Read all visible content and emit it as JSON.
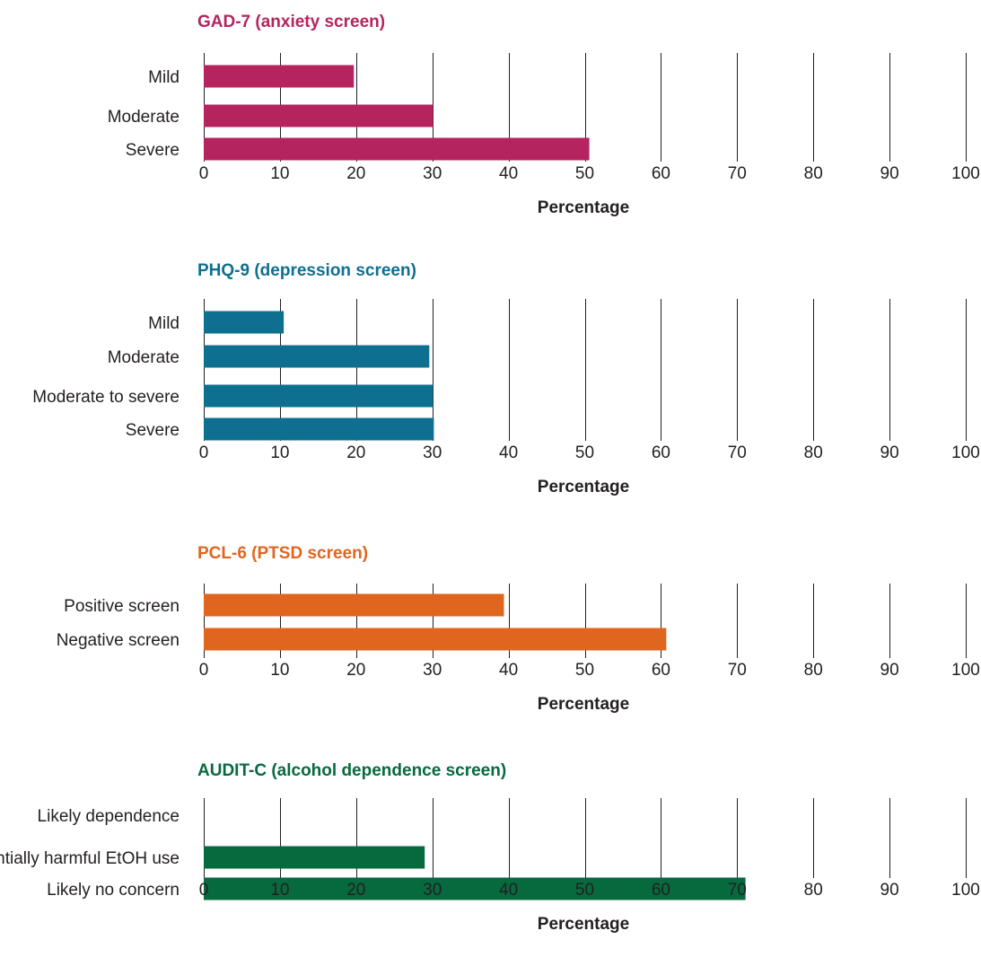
{
  "chart_data": [
    {
      "type": "bar",
      "orientation": "horizontal",
      "title": "GAD-7 (anxiety screen)",
      "color": "#b5245f",
      "categories": [
        "Mild",
        "Moderate",
        "Severe"
      ],
      "values": [
        19.7,
        30.1,
        50.6
      ],
      "xlabel": "Percentage",
      "xlim": [
        0,
        100
      ],
      "xticks": [
        "0",
        "10",
        "20",
        "30",
        "40",
        "50",
        "60",
        "70",
        "80",
        "90",
        "100"
      ],
      "grid": true
    },
    {
      "type": "bar",
      "orientation": "horizontal",
      "title": "PHQ-9 (depression screen)",
      "color": "#0f6f91",
      "categories": [
        "Mild",
        "Moderate",
        "Moderate to severe",
        "Severe"
      ],
      "values": [
        10.5,
        29.6,
        30.1,
        30.2
      ],
      "xlabel": "Percentage",
      "xlim": [
        0,
        100
      ],
      "xticks": [
        "0",
        "10",
        "20",
        "30",
        "40",
        "50",
        "60",
        "70",
        "80",
        "90",
        "100"
      ],
      "grid": true
    },
    {
      "type": "bar",
      "orientation": "horizontal",
      "title": "PCL-6 (PTSD screen)",
      "color": "#e0661f",
      "categories": [
        "Positive screen",
        "Negative screen"
      ],
      "values": [
        39.4,
        60.7
      ],
      "xlabel": "Percentage",
      "xlim": [
        0,
        100
      ],
      "xticks": [
        "0",
        "10",
        "20",
        "30",
        "40",
        "50",
        "60",
        "70",
        "80",
        "90",
        "100"
      ],
      "grid": true
    },
    {
      "type": "bar",
      "orientation": "horizontal",
      "title": "AUDIT-C (alcohol dependence screen)",
      "color": "#076a3f",
      "categories": [
        "Likely dependence",
        "Potentially harmful EtOH use",
        "Likely no concern"
      ],
      "values": [
        0,
        29.0,
        71.1
      ],
      "xlabel": "Percentage",
      "xlim": [
        0,
        100
      ],
      "xticks": [
        "0",
        "10",
        "20",
        "30",
        "40",
        "50",
        "60",
        "70",
        "80",
        "90",
        "100"
      ],
      "grid": true
    }
  ]
}
